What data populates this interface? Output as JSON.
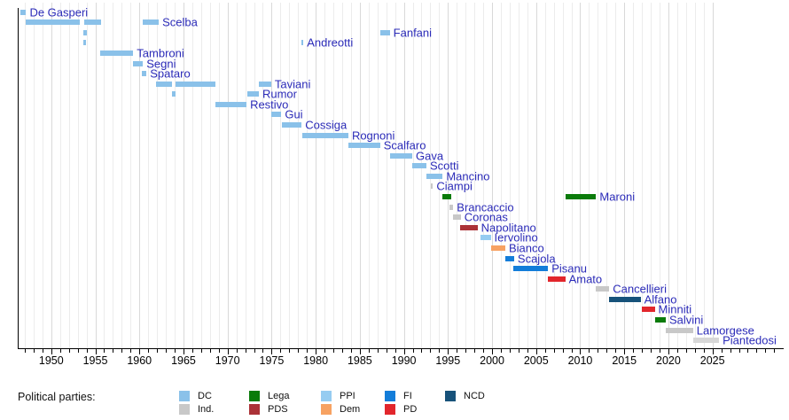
{
  "chart_data": {
    "type": "timeline-gantt",
    "description_domain": "Timeline of officeholders by political party",
    "x_axis": {
      "range": [
        1946.25,
        2032.5
      ],
      "gridlines": "yearly",
      "labeled_years": [
        1950,
        1955,
        1960,
        1965,
        1970,
        1975,
        1980,
        1985,
        1990,
        1995,
        2000,
        2005,
        2010,
        2015,
        2020,
        2025
      ]
    },
    "parties": {
      "DC": "#8AC1E9",
      "Ind": "#C8C8C8",
      "Lega": "#0A7B0A",
      "PDS": "#AB3237",
      "PPI": "#96CCF1",
      "Dem": "#F7A262",
      "FI": "#137DD9",
      "PD": "#E2262C",
      "NCD": "#17527A"
    },
    "ministers": [
      {
        "name": "De Gasperi",
        "party": "DC",
        "terms": [
          {
            "start": 1946.5,
            "end": 1947.15
          }
        ]
      },
      {
        "name": "Scelba",
        "party": "DC",
        "terms": [
          {
            "start": 1947.15,
            "end": 1953.2
          },
          {
            "start": 1953.75,
            "end": 1955.65
          },
          {
            "start": 1960.35,
            "end": 1962.2
          }
        ]
      },
      {
        "name": "Fanfani",
        "party": "DC",
        "terms": [
          {
            "start": 1953.6,
            "end": 1954.05
          },
          {
            "start": 1987.3,
            "end": 1988.4
          }
        ]
      },
      {
        "name": "Andreotti",
        "party": "DC",
        "terms": [
          {
            "start": 1953.65,
            "end": 1953.95
          },
          {
            "start": 1978.35,
            "end": 1978.6
          }
        ]
      },
      {
        "name": "Tambroni",
        "party": "DC",
        "terms": [
          {
            "start": 1955.6,
            "end": 1959.3
          }
        ]
      },
      {
        "name": "Segni",
        "party": "DC",
        "terms": [
          {
            "start": 1959.25,
            "end": 1960.4
          }
        ]
      },
      {
        "name": "Spataro",
        "party": "DC",
        "terms": [
          {
            "start": 1960.3,
            "end": 1960.8
          }
        ]
      },
      {
        "name": "Taviani",
        "party": "DC",
        "terms": [
          {
            "start": 1961.9,
            "end": 1963.7
          },
          {
            "start": 1964.1,
            "end": 1968.6
          },
          {
            "start": 1973.55,
            "end": 1974.95
          }
        ]
      },
      {
        "name": "Rumor",
        "party": "DC",
        "terms": [
          {
            "start": 1963.65,
            "end": 1964.1
          },
          {
            "start": 1972.2,
            "end": 1973.55
          }
        ]
      },
      {
        "name": "Restivo",
        "party": "DC",
        "terms": [
          {
            "start": 1968.65,
            "end": 1972.15
          }
        ]
      },
      {
        "name": "Gui",
        "party": "DC",
        "terms": [
          {
            "start": 1974.95,
            "end": 1976.1
          }
        ]
      },
      {
        "name": "Cossiga",
        "party": "DC",
        "terms": [
          {
            "start": 1976.15,
            "end": 1978.4
          }
        ]
      },
      {
        "name": "Rognoni",
        "party": "DC",
        "terms": [
          {
            "start": 1978.45,
            "end": 1983.7
          }
        ]
      },
      {
        "name": "Scalfaro",
        "party": "DC",
        "terms": [
          {
            "start": 1983.7,
            "end": 1987.3
          }
        ]
      },
      {
        "name": "Gava",
        "party": "DC",
        "terms": [
          {
            "start": 1988.45,
            "end": 1990.95
          }
        ]
      },
      {
        "name": "Scotti",
        "party": "DC",
        "terms": [
          {
            "start": 1990.95,
            "end": 1992.55
          }
        ]
      },
      {
        "name": "Mancino",
        "party": "DC",
        "terms": [
          {
            "start": 1992.55,
            "end": 1994.4
          }
        ]
      },
      {
        "name": "Ciampi",
        "party": "Ind",
        "terms": [
          {
            "start": 1993.05,
            "end": 1993.3
          }
        ]
      },
      {
        "name": "Maroni",
        "party": "Lega",
        "terms": [
          {
            "start": 1994.4,
            "end": 1995.35
          },
          {
            "start": 2008.3,
            "end": 2011.8
          }
        ]
      },
      {
        "name": "Brancaccio",
        "party": "Ind",
        "terms": [
          {
            "start": 1995.2,
            "end": 1995.6
          }
        ]
      },
      {
        "name": "Coronas",
        "party": "Ind",
        "terms": [
          {
            "start": 1995.6,
            "end": 1996.45
          }
        ]
      },
      {
        "name": "Napolitano",
        "party": "PDS",
        "terms": [
          {
            "start": 1996.35,
            "end": 1998.35
          }
        ]
      },
      {
        "name": "Iervolino",
        "party": "PPI",
        "terms": [
          {
            "start": 1998.7,
            "end": 1999.85
          }
        ]
      },
      {
        "name": "Bianco",
        "party": "Dem",
        "terms": [
          {
            "start": 1999.85,
            "end": 2001.5
          }
        ]
      },
      {
        "name": "Scajola",
        "party": "FI",
        "terms": [
          {
            "start": 2001.5,
            "end": 2002.5
          }
        ]
      },
      {
        "name": "Pisanu",
        "party": "FI",
        "terms": [
          {
            "start": 2002.4,
            "end": 2006.35
          }
        ]
      },
      {
        "name": "Amato",
        "party": "PD",
        "terms": [
          {
            "start": 2006.3,
            "end": 2008.3
          }
        ]
      },
      {
        "name": "Cancellieri",
        "party": "Ind",
        "terms": [
          {
            "start": 2011.8,
            "end": 2013.3
          }
        ]
      },
      {
        "name": "Alfano",
        "party": "NCD",
        "terms": [
          {
            "start": 2013.25,
            "end": 2016.85
          }
        ]
      },
      {
        "name": "Minniti",
        "party": "PD",
        "terms": [
          {
            "start": 2016.95,
            "end": 2018.45
          }
        ]
      },
      {
        "name": "Salvini",
        "party": "Lega",
        "terms": [
          {
            "start": 2018.45,
            "end": 2019.7
          }
        ]
      },
      {
        "name": "Lamorgese",
        "party": "Ind",
        "terms": [
          {
            "start": 2019.7,
            "end": 2022.8
          }
        ]
      },
      {
        "name": "Piantedosi",
        "party": "Ind",
        "color": "#D7D7D7",
        "terms": [
          {
            "start": 2022.8,
            "end": 2025.75
          }
        ]
      }
    ],
    "legend": {
      "title": "Political parties:",
      "entries": [
        {
          "label": "DC",
          "party": "DC",
          "col": 0,
          "row": 0
        },
        {
          "label": "Ind.",
          "party": "Ind",
          "col": 0,
          "row": 1
        },
        {
          "label": "Lega",
          "party": "Lega",
          "col": 1,
          "row": 0
        },
        {
          "label": "PDS",
          "party": "PDS",
          "col": 1,
          "row": 1
        },
        {
          "label": "PPI",
          "party": "PPI",
          "col": 2,
          "row": 0
        },
        {
          "label": "Dem",
          "party": "Dem",
          "col": 2,
          "row": 1
        },
        {
          "label": "FI",
          "party": "FI",
          "col": 3,
          "row": 0
        },
        {
          "label": "PD",
          "party": "PD",
          "col": 3,
          "row": 1
        },
        {
          "label": "NCD",
          "party": "NCD",
          "col": 4,
          "row": 0
        }
      ]
    },
    "text_colors": {
      "minister_label": "#2B2BB8",
      "axis_label": "#000000"
    }
  }
}
